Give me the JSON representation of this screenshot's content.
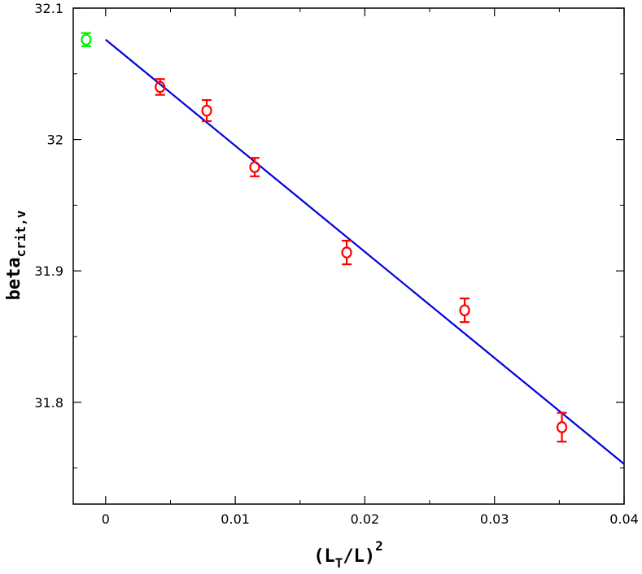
{
  "chart_data": {
    "type": "scatter",
    "xlim": [
      -0.0025,
      0.04
    ],
    "ylim": [
      31.7225,
      32.1
    ],
    "x_ticks": [
      {
        "value": 0,
        "label": "0"
      },
      {
        "value": 0.01,
        "label": "0.01"
      },
      {
        "value": 0.02,
        "label": "0.02"
      },
      {
        "value": 0.03,
        "label": "0.03"
      },
      {
        "value": 0.04,
        "label": "0.04"
      }
    ],
    "x_minor_ticks": [
      0.005,
      0.015,
      0.025,
      0.035
    ],
    "y_ticks": [
      {
        "value": 31.8,
        "label": "31.8"
      },
      {
        "value": 31.9,
        "label": "31.9"
      },
      {
        "value": 32.0,
        "label": "32"
      },
      {
        "value": 32.1,
        "label": "32.1"
      }
    ],
    "y_minor_ticks": [
      31.75,
      31.85,
      31.95,
      32.05
    ],
    "xlabel": {
      "base": "(L",
      "sub": "T",
      "mid": "/L)",
      "sup": "2"
    },
    "ylabel": {
      "base": "beta",
      "sub": "crit,v"
    },
    "grid": false,
    "colors": {
      "data": "#ff0000",
      "extrapolated": "#00ee00",
      "fit": "#0000dd"
    },
    "series": [
      {
        "kind": "points",
        "color_key": "data",
        "points": [
          {
            "x": 0.0042,
            "y": 32.04,
            "err": 0.006
          },
          {
            "x": 0.0078,
            "y": 32.022,
            "err": 0.008
          },
          {
            "x": 0.0115,
            "y": 31.979,
            "err": 0.007
          },
          {
            "x": 0.0186,
            "y": 31.914,
            "err": 0.009
          },
          {
            "x": 0.0277,
            "y": 31.87,
            "err": 0.009
          },
          {
            "x": 0.0352,
            "y": 31.781,
            "err": 0.011
          }
        ]
      },
      {
        "kind": "points",
        "color_key": "extrapolated",
        "points": [
          {
            "x": -0.0015,
            "y": 32.076,
            "err": 0.005
          }
        ]
      },
      {
        "kind": "line",
        "color_key": "fit",
        "x": [
          0,
          0.04
        ],
        "y": [
          32.076,
          31.753
        ]
      }
    ]
  }
}
